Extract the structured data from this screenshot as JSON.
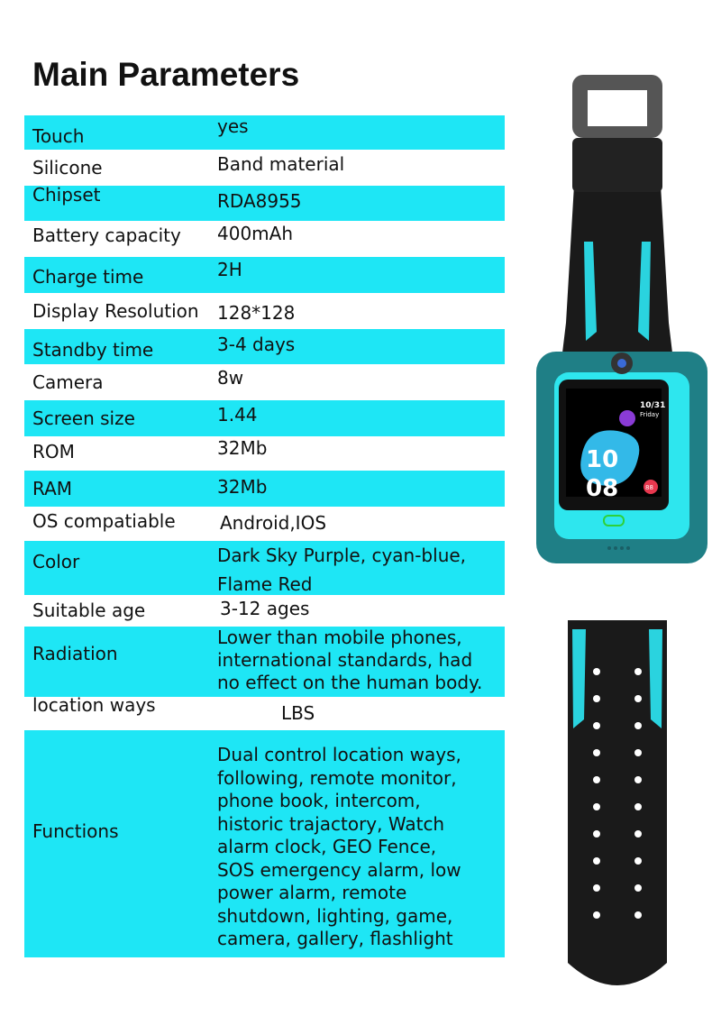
{
  "title": "Main Parameters",
  "accent_color": "#1ee6f5",
  "rows": [
    {
      "label": "Touch",
      "value": "yes"
    },
    {
      "label": "Silicone",
      "value": "Band material"
    },
    {
      "label": "Chipset",
      "value": "RDA8955"
    },
    {
      "label": "Battery capacity",
      "value": "400mAh"
    },
    {
      "label": "Charge time",
      "value": "2H"
    },
    {
      "label": "Display Resolution",
      "value": "128*128"
    },
    {
      "label": "Standby time",
      "value": "3-4 days"
    },
    {
      "label": "Camera",
      "value": "8w"
    },
    {
      "label": "Screen size",
      "value": "1.44"
    },
    {
      "label": "ROM",
      "value": "32Mb"
    },
    {
      "label": "RAM",
      "value": "32Mb"
    },
    {
      "label": "OS compatiable",
      "value": "Android,IOS"
    },
    {
      "label": "Color",
      "value": "Dark Sky Purple, cyan-blue,\nFlame Red"
    },
    {
      "label": "Suitable age",
      "value": "3-12 ages"
    },
    {
      "label": "Radiation",
      "value": "Lower than mobile phones,\ninternational standards, had\nno effect on the human body."
    },
    {
      "label": "location ways",
      "value": "LBS"
    },
    {
      "label": "Functions",
      "value": "Dual control location ways,\nfollowing, remote monitor,\nphone book, intercom,\nhistoric trajactory, Watch\nalarm clock, GEO Fence,\nSOS emergency alarm, low\npower alarm, remote\nshutdown, lighting, game,\ncamera, gallery, flashlight"
    }
  ],
  "watch_screen": {
    "hour": "10",
    "minute": "08",
    "date": "10/31",
    "day": "Friday",
    "heart_rate": "88"
  }
}
